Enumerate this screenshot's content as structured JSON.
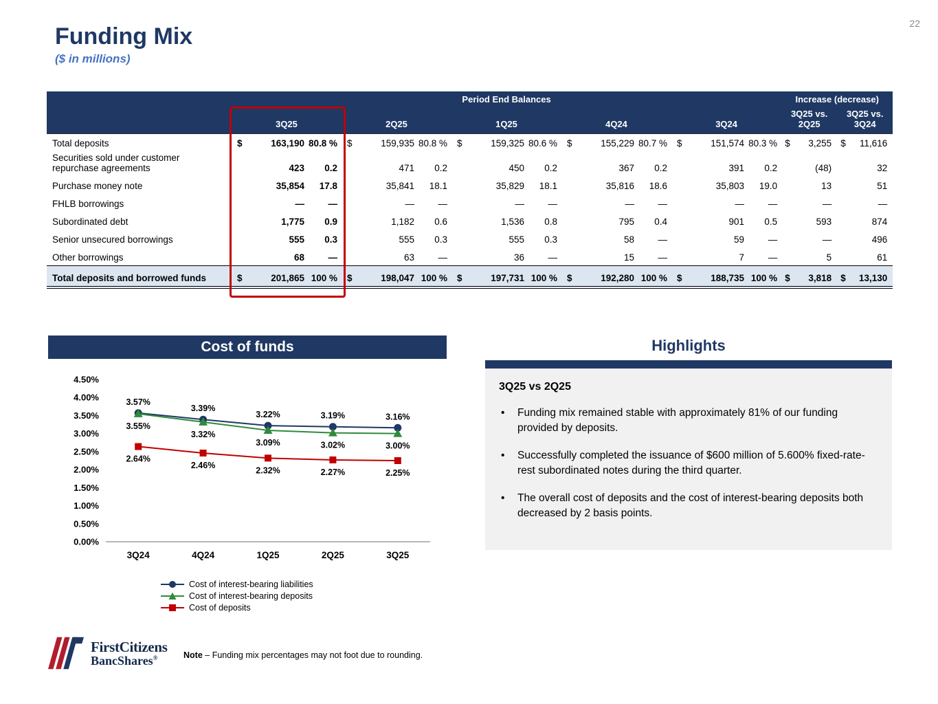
{
  "page": {
    "number": "22",
    "title": "Funding Mix",
    "subtitle": "($ in millions)"
  },
  "table": {
    "group_headers": [
      "Period End Balances",
      "Increase (decrease)"
    ],
    "period_headers": [
      "3Q25",
      "2Q25",
      "1Q25",
      "4Q24",
      "3Q24"
    ],
    "increase_headers": [
      [
        "3Q25 vs.",
        "2Q25"
      ],
      [
        "3Q25 vs.",
        "3Q24"
      ]
    ],
    "rows": [
      {
        "label": "Total deposits",
        "total": false,
        "periods": [
          [
            "$",
            "163,190",
            "80.8 %"
          ],
          [
            "$",
            "159,935",
            "80.8 %"
          ],
          [
            "$",
            "159,325",
            "80.6 %"
          ],
          [
            "$",
            "155,229",
            "80.7 %"
          ],
          [
            "$",
            "151,574",
            "80.3 %"
          ]
        ],
        "increases": [
          [
            "$",
            "3,255"
          ],
          [
            "$",
            "11,616"
          ]
        ]
      },
      {
        "label": "Securities sold under customer repurchase agreements",
        "total": false,
        "periods": [
          [
            "",
            "423",
            "0.2"
          ],
          [
            "",
            "471",
            "0.2"
          ],
          [
            "",
            "450",
            "0.2"
          ],
          [
            "",
            "367",
            "0.2"
          ],
          [
            "",
            "391",
            "0.2"
          ]
        ],
        "increases": [
          [
            "",
            "(48)"
          ],
          [
            "",
            "32"
          ]
        ]
      },
      {
        "label": "Purchase money note",
        "total": false,
        "periods": [
          [
            "",
            "35,854",
            "17.8"
          ],
          [
            "",
            "35,841",
            "18.1"
          ],
          [
            "",
            "35,829",
            "18.1"
          ],
          [
            "",
            "35,816",
            "18.6"
          ],
          [
            "",
            "35,803",
            "19.0"
          ]
        ],
        "increases": [
          [
            "",
            "13"
          ],
          [
            "",
            "51"
          ]
        ]
      },
      {
        "label": "FHLB borrowings",
        "total": false,
        "periods": [
          [
            "",
            "—",
            "—"
          ],
          [
            "",
            "—",
            "—"
          ],
          [
            "",
            "—",
            "—"
          ],
          [
            "",
            "—",
            "—"
          ],
          [
            "",
            "—",
            "—"
          ]
        ],
        "increases": [
          [
            "",
            "—"
          ],
          [
            "",
            "—"
          ]
        ]
      },
      {
        "label": "Subordinated debt",
        "total": false,
        "periods": [
          [
            "",
            "1,775",
            "0.9"
          ],
          [
            "",
            "1,182",
            "0.6"
          ],
          [
            "",
            "1,536",
            "0.8"
          ],
          [
            "",
            "795",
            "0.4"
          ],
          [
            "",
            "901",
            "0.5"
          ]
        ],
        "increases": [
          [
            "",
            "593"
          ],
          [
            "",
            "874"
          ]
        ]
      },
      {
        "label": "Senior unsecured borrowings",
        "total": false,
        "periods": [
          [
            "",
            "555",
            "0.3"
          ],
          [
            "",
            "555",
            "0.3"
          ],
          [
            "",
            "555",
            "0.3"
          ],
          [
            "",
            "58",
            "—"
          ],
          [
            "",
            "59",
            "—"
          ]
        ],
        "increases": [
          [
            "",
            "—"
          ],
          [
            "",
            "496"
          ]
        ]
      },
      {
        "label": "Other borrowings",
        "total": false,
        "periods": [
          [
            "",
            "68",
            "—"
          ],
          [
            "",
            "63",
            "—"
          ],
          [
            "",
            "36",
            "—"
          ],
          [
            "",
            "15",
            "—"
          ],
          [
            "",
            "7",
            "—"
          ]
        ],
        "increases": [
          [
            "",
            "5"
          ],
          [
            "",
            "61"
          ]
        ]
      },
      {
        "label": "Total deposits and borrowed funds",
        "total": true,
        "periods": [
          [
            "$",
            "201,865",
            "100 %"
          ],
          [
            "$",
            "198,047",
            "100 %"
          ],
          [
            "$",
            "197,731",
            "100 %"
          ],
          [
            "$",
            "192,280",
            "100 %"
          ],
          [
            "$",
            "188,735",
            "100 %"
          ]
        ],
        "increases": [
          [
            "$",
            "3,818"
          ],
          [
            "$",
            "13,130"
          ]
        ]
      }
    ]
  },
  "chart_data": {
    "type": "line",
    "title": "Cost of funds",
    "xlabel": "",
    "ylabel": "",
    "categories": [
      "3Q24",
      "4Q24",
      "1Q25",
      "2Q25",
      "3Q25"
    ],
    "series": [
      {
        "name": "Cost of interest-bearing liabilities",
        "color": "#1F3864",
        "marker": "circle",
        "values": [
          3.57,
          3.39,
          3.22,
          3.19,
          3.16
        ],
        "labels": [
          "3.57%",
          "3.39%",
          "3.22%",
          "3.19%",
          "3.16%"
        ]
      },
      {
        "name": "Cost of interest-bearing deposits",
        "color": "#2E8B3A",
        "marker": "triangle",
        "values": [
          3.55,
          3.32,
          3.09,
          3.02,
          3.0
        ],
        "labels": [
          "3.55%",
          "3.32%",
          "3.09%",
          "3.02%",
          "3.00%"
        ]
      },
      {
        "name": "Cost of deposits",
        "color": "#C00000",
        "marker": "square",
        "values": [
          2.64,
          2.46,
          2.32,
          2.27,
          2.25
        ],
        "labels": [
          "2.64%",
          "2.46%",
          "2.32%",
          "2.27%",
          "2.25%"
        ]
      }
    ],
    "ylim": [
      0,
      4.5
    ],
    "y_ticks": [
      "0.00%",
      "0.50%",
      "1.00%",
      "1.50%",
      "2.00%",
      "2.50%",
      "3.00%",
      "3.50%",
      "4.00%",
      "4.50%"
    ],
    "grid": false,
    "legend_position": "bottom"
  },
  "highlights": {
    "title": "Highlights",
    "subtitle": "3Q25 vs 2Q25",
    "bullets": [
      "Funding mix remained stable with approximately 81% of our funding provided by deposits.",
      "Successfully completed the issuance of $600 million of 5.600% fixed-rate-rest subordinated notes during the third quarter.",
      "The overall cost of deposits and the cost of interest-bearing deposits both decreased by 2 basis points."
    ]
  },
  "footer": {
    "note_label": "Note",
    "note_text": "– Funding mix percentages may not foot due to rounding.",
    "brand_line1": "FirstCitizens",
    "brand_line2": "BancShares",
    "registered_mark": "®"
  },
  "colors": {
    "navy": "#1F3864",
    "accent_blue": "#4472C4",
    "highlight_red": "#C00000",
    "total_row_bg": "#DCE6F1",
    "panel_gray": "#F1F1F1"
  }
}
